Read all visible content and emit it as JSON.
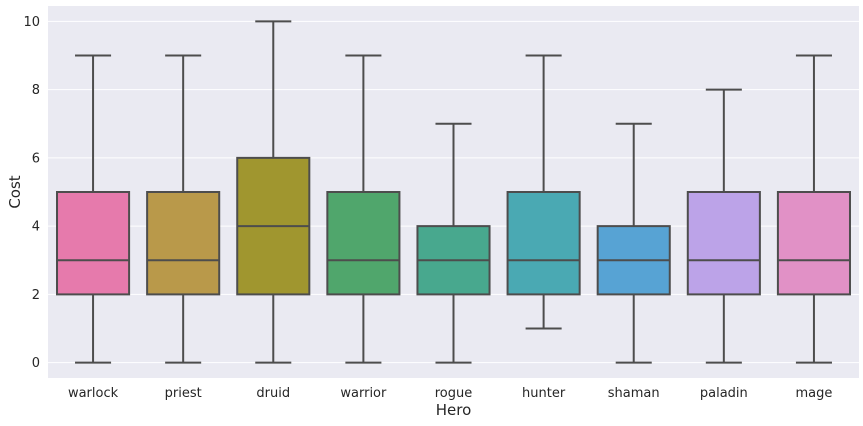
{
  "chart_data": {
    "type": "box",
    "xlabel": "Hero",
    "ylabel": "Cost",
    "ylim": [
      -0.45,
      10.45
    ],
    "yticks": [
      0,
      2,
      4,
      6,
      8,
      10
    ],
    "grid": true,
    "categories": [
      "warlock",
      "priest",
      "druid",
      "warrior",
      "rogue",
      "hunter",
      "shaman",
      "paladin",
      "mage"
    ],
    "boxes": [
      {
        "name": "warlock",
        "whisker_low": 0,
        "q1": 2,
        "median": 3,
        "q3": 5,
        "whisker_high": 9,
        "color": "#e67aac"
      },
      {
        "name": "priest",
        "whisker_low": 0,
        "q1": 2,
        "median": 3,
        "q3": 5,
        "whisker_high": 9,
        "color": "#b9994a"
      },
      {
        "name": "druid",
        "whisker_low": 0,
        "q1": 2,
        "median": 4,
        "q3": 6,
        "whisker_high": 10,
        "color": "#a0962f"
      },
      {
        "name": "warrior",
        "whisker_low": 0,
        "q1": 2,
        "median": 3,
        "q3": 5,
        "whisker_high": 9,
        "color": "#50a66c"
      },
      {
        "name": "rogue",
        "whisker_low": 0,
        "q1": 2,
        "median": 3,
        "q3": 4,
        "whisker_high": 7,
        "color": "#48a88e"
      },
      {
        "name": "hunter",
        "whisker_low": 1,
        "q1": 2,
        "median": 3,
        "q3": 5,
        "whisker_high": 9,
        "color": "#4aa9b3"
      },
      {
        "name": "shaman",
        "whisker_low": 0,
        "q1": 2,
        "median": 3,
        "q3": 4,
        "whisker_high": 7,
        "color": "#57a3d4"
      },
      {
        "name": "paladin",
        "whisker_low": 0,
        "q1": 2,
        "median": 3,
        "q3": 5,
        "whisker_high": 8,
        "color": "#bca3e8"
      },
      {
        "name": "mage",
        "whisker_low": 0,
        "q1": 2,
        "median": 3,
        "q3": 5,
        "whisker_high": 9,
        "color": "#e191c6"
      }
    ],
    "colors": {
      "background": "#eaeaf2",
      "grid": "#ffffff",
      "line": "#4d4d4d",
      "text": "#262626"
    }
  }
}
